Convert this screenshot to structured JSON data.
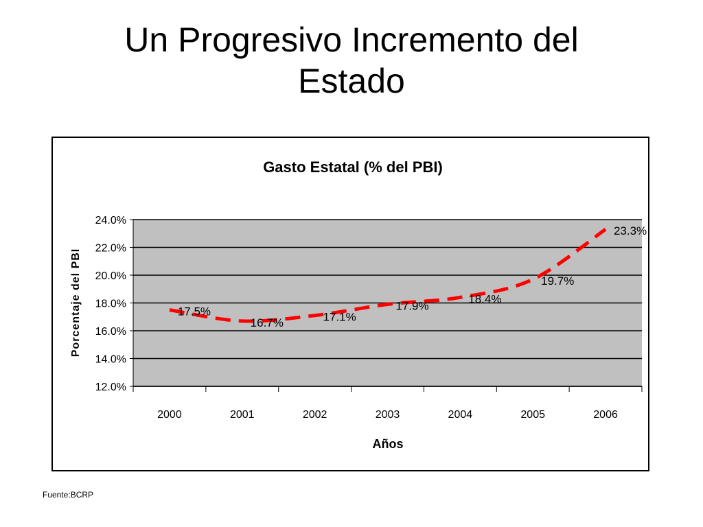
{
  "slide": {
    "title_lines": [
      "Un Progresivo Incremento del",
      "Estado"
    ],
    "source": "Fuente:BCRP"
  },
  "chart_data": {
    "type": "line",
    "title": "Gasto Estatal (% del PBI)",
    "xlabel": "Años",
    "ylabel": "Porcentaje del PBI",
    "categories": [
      "2000",
      "2001",
      "2002",
      "2003",
      "2004",
      "2005",
      "2006"
    ],
    "series": [
      {
        "values": [
          17.5,
          16.7,
          17.1,
          17.9,
          18.4,
          19.7,
          23.3
        ],
        "labels": [
          "17.5%",
          "16.7%",
          "17.1%",
          "17.9%",
          "18.4%",
          "19.7%",
          "23.3%"
        ],
        "color": "#ff0000",
        "line_style": "dashed"
      }
    ],
    "ylim": [
      12,
      24
    ],
    "yticks": [
      "12.0%",
      "14.0%",
      "16.0%",
      "18.0%",
      "20.0%",
      "22.0%",
      "24.0%"
    ],
    "plot_background": "#c0c0c0",
    "grid": true,
    "legend": "none"
  }
}
